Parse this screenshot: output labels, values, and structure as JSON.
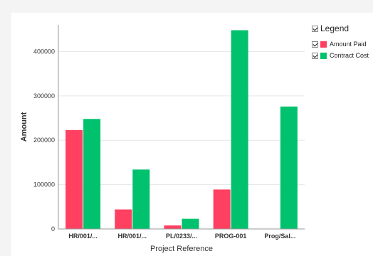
{
  "chart_data": {
    "type": "bar",
    "categories": [
      "HR/001/...",
      "HR/001/...",
      "PL/0233/...",
      "PROG-001",
      "Prog/Sal..."
    ],
    "series": [
      {
        "name": "Amount Paid",
        "color": "#ff4060",
        "values": [
          223000,
          44000,
          8000,
          89000,
          0
        ]
      },
      {
        "name": "Contract Cost",
        "color": "#00c26e",
        "values": [
          248000,
          134000,
          23000,
          448000,
          276000
        ]
      }
    ],
    "xlabel": "Project Reference",
    "ylabel": "Amount",
    "ylim": [
      0,
      460000
    ],
    "yticks": [
      0,
      100000,
      200000,
      300000,
      400000
    ],
    "grid": true
  },
  "legend": {
    "title": "Legend",
    "items": [
      {
        "label": "Amount Paid",
        "color": "#ff4060"
      },
      {
        "label": "Contract Cost",
        "color": "#00c26e"
      }
    ]
  }
}
